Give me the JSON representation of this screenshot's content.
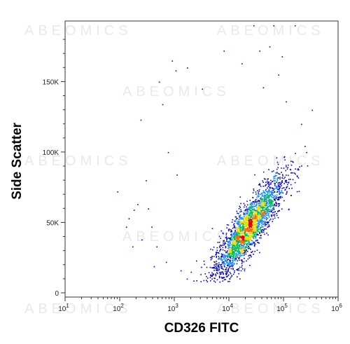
{
  "watermark": "ABEOMICS",
  "chart_data": {
    "type": "scatter",
    "title": "",
    "xlabel": "CD326 FITC",
    "ylabel": "Side Scatter",
    "x_scale": "log",
    "xlim": [
      10,
      1000000
    ],
    "ylim": [
      -3000,
      193000
    ],
    "x_ticks": [
      {
        "value": 10,
        "base": "10",
        "exp": "1"
      },
      {
        "value": 100,
        "base": "10",
        "exp": "2"
      },
      {
        "value": 1000,
        "base": "10",
        "exp": "3"
      },
      {
        "value": 10000,
        "base": "10",
        "exp": "4"
      },
      {
        "value": 100000,
        "base": "10",
        "exp": "5"
      },
      {
        "value": 1000000,
        "base": "10",
        "exp": "6"
      }
    ],
    "y_ticks": [
      {
        "value": 0,
        "label": "0"
      },
      {
        "value": 50000,
        "label": "50K"
      },
      {
        "value": 100000,
        "label": "100K"
      },
      {
        "value": 150000,
        "label": "150K"
      }
    ],
    "density_colors": [
      "#0000cc",
      "#1a8cff",
      "#00bb55",
      "#e6dd00",
      "#ff6600",
      "#dd0000"
    ],
    "population": {
      "center": {
        "x": 22000,
        "y": 46000
      },
      "approx_events": 2600
    },
    "outliers": [
      {
        "x": 130,
        "y": 47000
      },
      {
        "x": 145,
        "y": 53000
      },
      {
        "x": 170,
        "y": 33000
      },
      {
        "x": 180,
        "y": 59000
      },
      {
        "x": 210,
        "y": 63000
      },
      {
        "x": 250,
        "y": 38000
      },
      {
        "x": 300,
        "y": 80000
      },
      {
        "x": 330,
        "y": 60000
      },
      {
        "x": 380,
        "y": 47000
      },
      {
        "x": 420,
        "y": 19000
      },
      {
        "x": 470,
        "y": 33000
      },
      {
        "x": 520,
        "y": 150000
      },
      {
        "x": 600,
        "y": 134000
      },
      {
        "x": 700,
        "y": 22000
      },
      {
        "x": 760,
        "y": 100000
      },
      {
        "x": 900,
        "y": 165000
      },
      {
        "x": 1050,
        "y": 158000
      },
      {
        "x": 1300,
        "y": 16000
      },
      {
        "x": 1700,
        "y": 160000
      },
      {
        "x": 2000,
        "y": 15000
      },
      {
        "x": 2500,
        "y": 23000
      },
      {
        "x": 3200,
        "y": 145000
      },
      {
        "x": 8000,
        "y": 172000
      },
      {
        "x": 17000,
        "y": 163000
      },
      {
        "x": 28000,
        "y": 190000
      },
      {
        "x": 36000,
        "y": 172000
      },
      {
        "x": 42000,
        "y": 146000
      },
      {
        "x": 55000,
        "y": 175000
      },
      {
        "x": 65000,
        "y": 190000
      },
      {
        "x": 80000,
        "y": 155000
      },
      {
        "x": 93000,
        "y": 168000
      },
      {
        "x": 110000,
        "y": 136000
      },
      {
        "x": 160000,
        "y": 190000
      },
      {
        "x": 210000,
        "y": 120000
      },
      {
        "x": 260000,
        "y": 100000
      },
      {
        "x": 330000,
        "y": 130000
      },
      {
        "x": 90,
        "y": 72000
      },
      {
        "x": 240,
        "y": 123000
      },
      {
        "x": 1100,
        "y": 84000
      }
    ]
  }
}
